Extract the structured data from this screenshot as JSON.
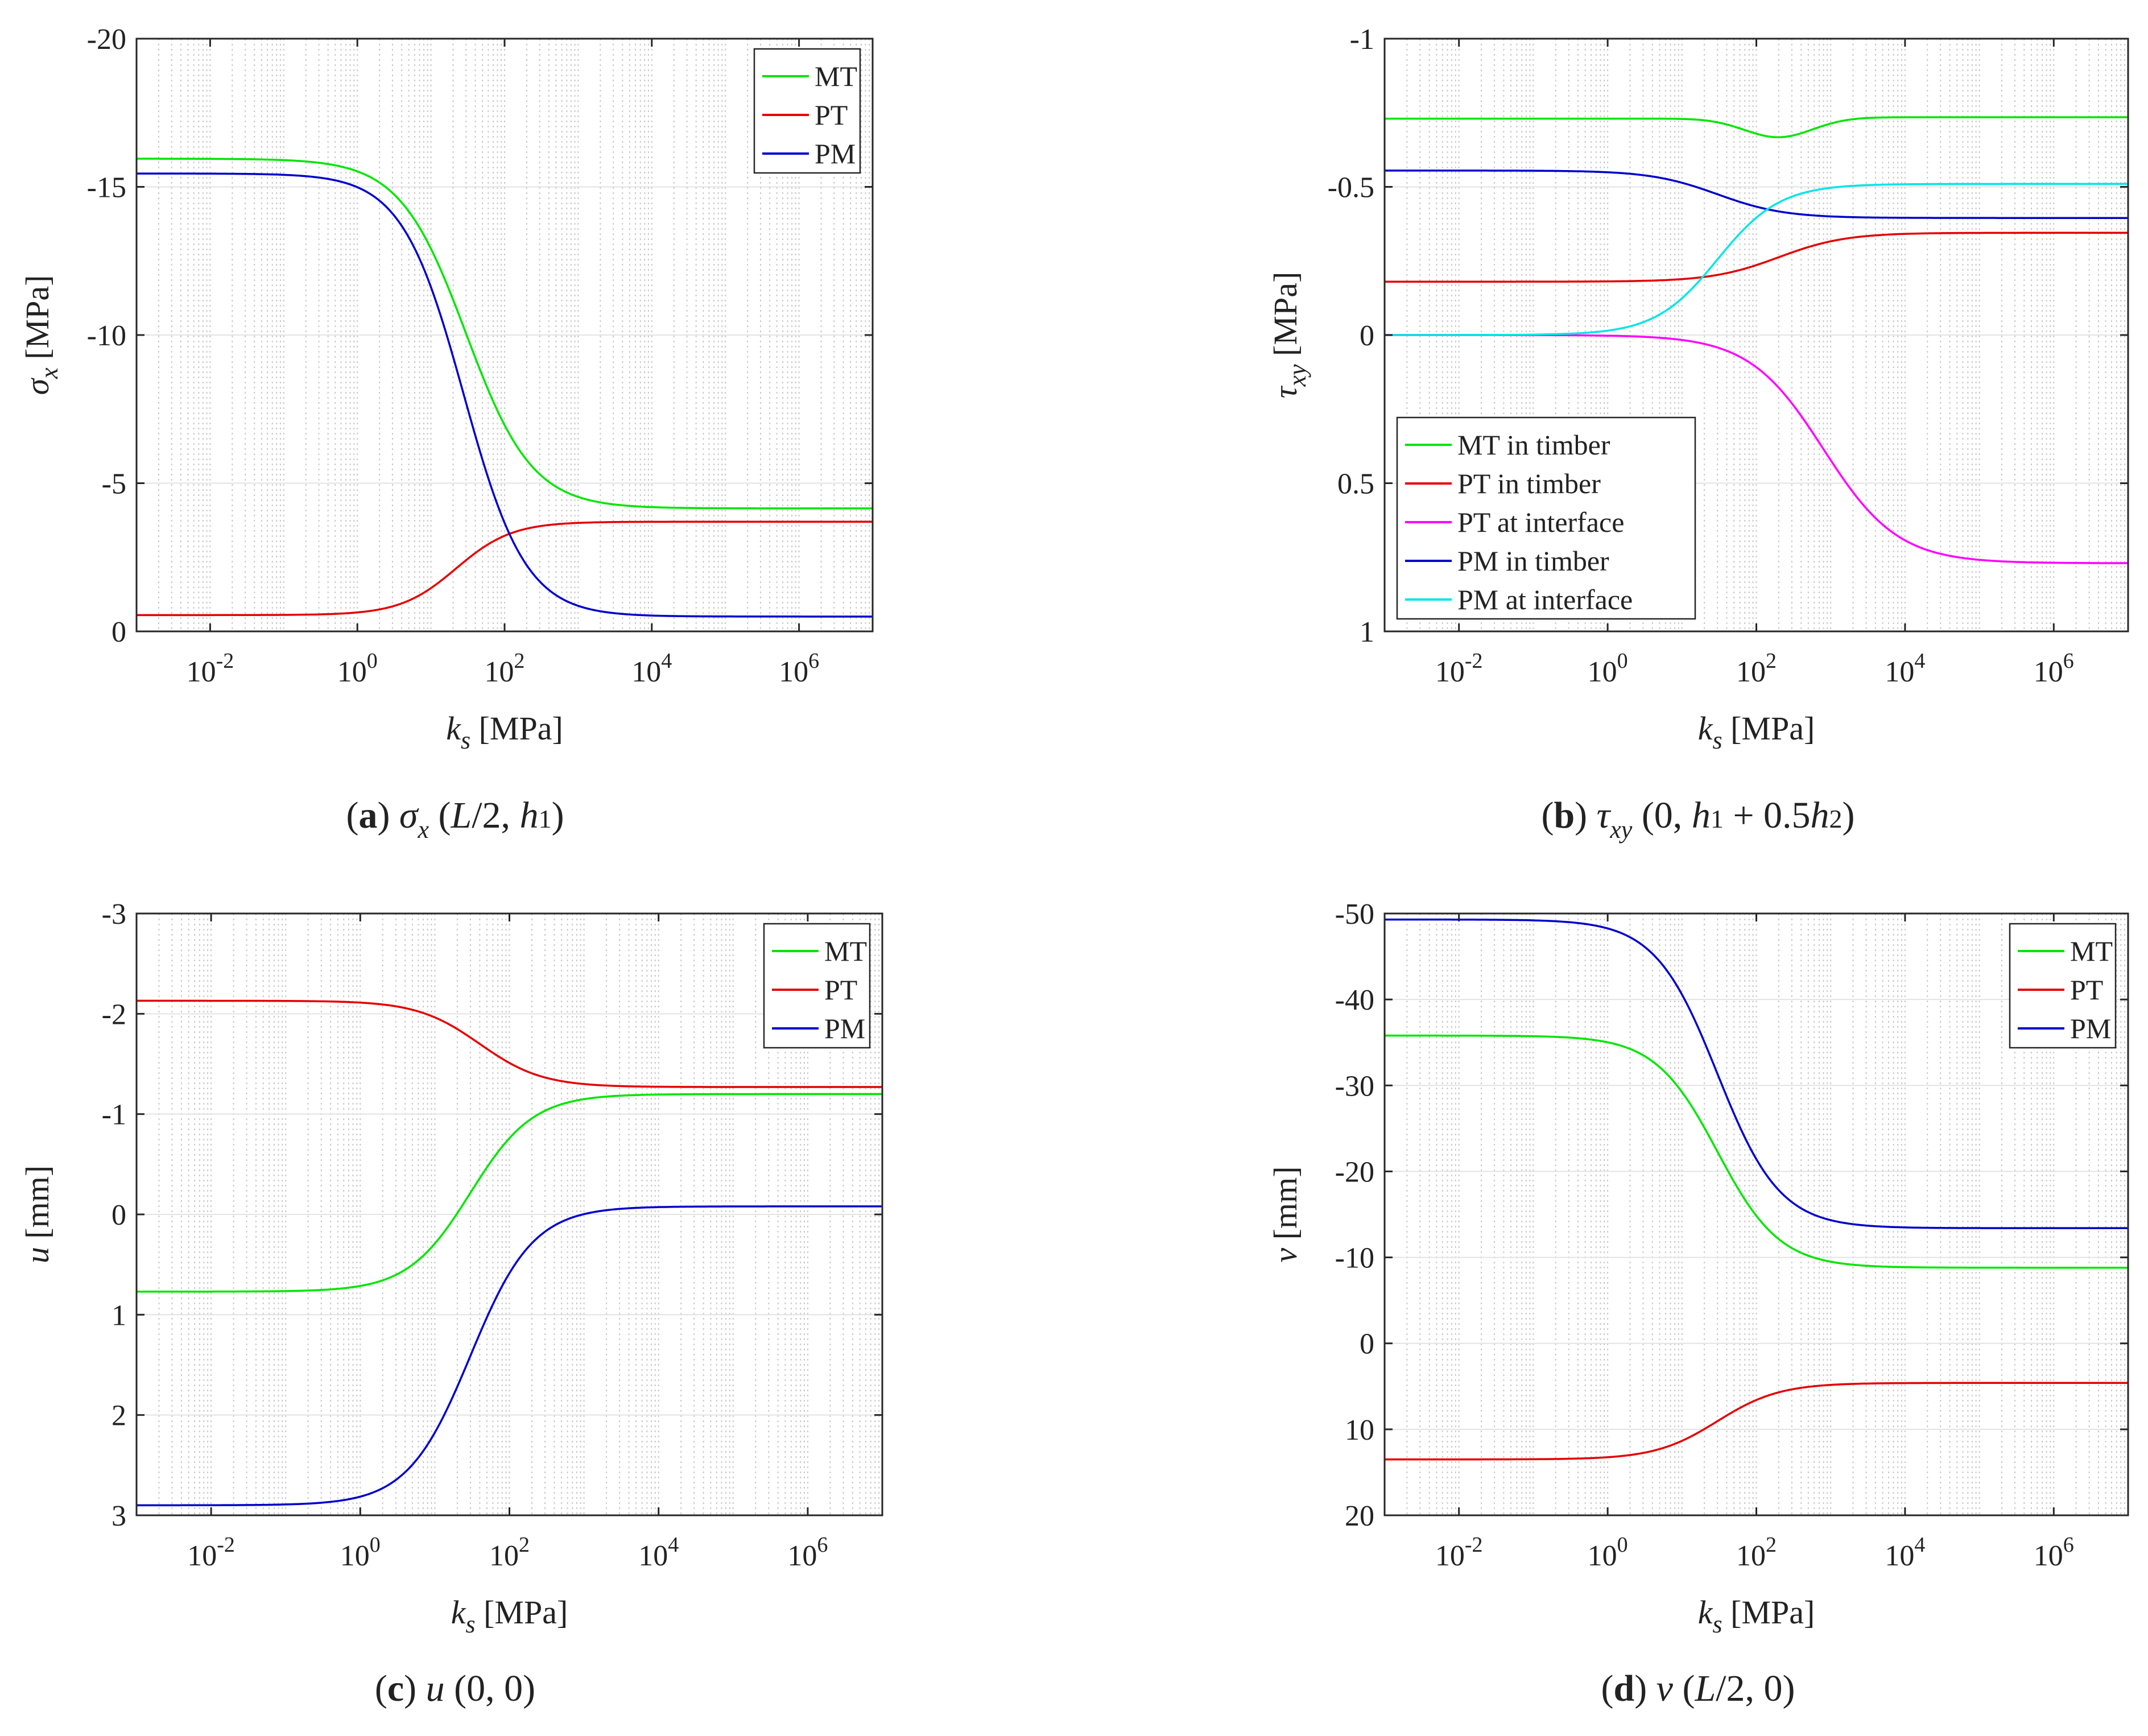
{
  "chart_data": [
    {
      "id": "a",
      "type": "line",
      "xscale": "log",
      "xlim": [
        0.001,
        10000000
      ],
      "ylim": [
        -20,
        0
      ],
      "y_reversed": true,
      "yticks": [
        -20,
        -15,
        -10,
        -5,
        0
      ],
      "ytick_labels": [
        "-20",
        "-15",
        "-10",
        "-5",
        "0"
      ],
      "xticks": [
        0.01,
        1,
        100,
        10000,
        1000000
      ],
      "xtick_labels": [
        {
          "base": "10",
          "exp": "-2"
        },
        {
          "base": "10",
          "exp": "0"
        },
        {
          "base": "10",
          "exp": "2"
        },
        {
          "base": "10",
          "exp": "4"
        },
        {
          "base": "10",
          "exp": "6"
        }
      ],
      "ylabel": {
        "sym": "σ",
        "sub": "x",
        "unit": " [MPa]"
      },
      "xlabel": {
        "sym": "k",
        "sub": "s",
        "unit": " [MPa]"
      },
      "grid": true,
      "legend": {
        "position": "top-right"
      },
      "series": [
        {
          "name": "MT",
          "color": "#00e600",
          "start": -15.95,
          "end": -4.15,
          "midpoint": 30,
          "width": 0.45
        },
        {
          "name": "PT",
          "color": "#e60000",
          "start": -0.55,
          "end": -3.7,
          "midpoint": 22,
          "width": 0.38
        },
        {
          "name": "PM",
          "color": "#0000cc",
          "start": -15.45,
          "end": -0.5,
          "midpoint": 28,
          "width": 0.42
        }
      ],
      "caption": {
        "letter": "a",
        "parts": [
          {
            "text": "σ",
            "style": "italic"
          },
          {
            "text": "x",
            "style": "sub-italic"
          },
          {
            "text": "  (",
            "style": "normal"
          },
          {
            "text": "L",
            "style": "italic"
          },
          {
            "text": "/2, ",
            "style": "normal"
          },
          {
            "text": "h",
            "style": "italic"
          },
          {
            "text": "1",
            "style": "small"
          },
          {
            "text": ")",
            "style": "normal"
          }
        ]
      }
    },
    {
      "id": "b",
      "type": "line",
      "xscale": "log",
      "xlim": [
        0.001,
        10000000
      ],
      "ylim": [
        -1,
        1
      ],
      "y_reversed": true,
      "yticks": [
        -1,
        -0.5,
        0,
        0.5,
        1
      ],
      "ytick_labels": [
        "-1",
        "-0.5",
        "0",
        "0.5",
        "1"
      ],
      "xticks": [
        0.01,
        1,
        100,
        10000,
        1000000
      ],
      "xtick_labels": [
        {
          "base": "10",
          "exp": "-2"
        },
        {
          "base": "10",
          "exp": "0"
        },
        {
          "base": "10",
          "exp": "2"
        },
        {
          "base": "10",
          "exp": "4"
        },
        {
          "base": "10",
          "exp": "6"
        }
      ],
      "ylabel": {
        "sym": "τ",
        "sub": "xy",
        "unit": " [MPa]"
      },
      "xlabel": {
        "sym": "k",
        "sub": "s",
        "unit": " [MPa]"
      },
      "grid": true,
      "legend": {
        "position": "bottom-left"
      },
      "series": [
        {
          "name": "MT in timber",
          "color": "#00e600",
          "start": -0.73,
          "end": -0.735,
          "midpoint": 200,
          "width": 0.5,
          "dip": 0.065,
          "dip_center": 200,
          "dip_width": 0.65
        },
        {
          "name": "PT in timber",
          "color": "#e60000",
          "start": -0.18,
          "end": -0.345,
          "midpoint": 200,
          "width": 0.45
        },
        {
          "name": "PT at interface",
          "color": "#ff00ff",
          "start": 0.0,
          "end": 0.77,
          "midpoint": 800,
          "width": 0.5
        },
        {
          "name": "PM in timber",
          "color": "#0000cc",
          "start": -0.555,
          "end": -0.395,
          "midpoint": 30,
          "width": 0.45
        },
        {
          "name": "PM at interface",
          "color": "#00e6e6",
          "start": 0.0,
          "end": -0.51,
          "midpoint": 30,
          "width": 0.42
        }
      ],
      "caption": {
        "letter": "b",
        "parts": [
          {
            "text": "τ",
            "style": "italic"
          },
          {
            "text": "xy",
            "style": "sub-italic"
          },
          {
            "text": "  (0, ",
            "style": "normal"
          },
          {
            "text": "h",
            "style": "italic"
          },
          {
            "text": "1",
            "style": "small"
          },
          {
            "text": " + 0.5",
            "style": "normal"
          },
          {
            "text": "h",
            "style": "italic"
          },
          {
            "text": "2",
            "style": "small"
          },
          {
            "text": ")",
            "style": "normal"
          }
        ]
      }
    },
    {
      "id": "c",
      "type": "line",
      "xscale": "log",
      "xlim": [
        0.001,
        10000000
      ],
      "ylim": [
        -3,
        3
      ],
      "y_reversed": true,
      "yticks": [
        -3,
        -2,
        -1,
        0,
        1,
        2,
        3
      ],
      "ytick_labels": [
        "-3",
        "-2",
        "-1",
        "0",
        "1",
        "2",
        "3"
      ],
      "xticks": [
        0.01,
        1,
        100,
        10000,
        1000000
      ],
      "xtick_labels": [
        {
          "base": "10",
          "exp": "-2"
        },
        {
          "base": "10",
          "exp": "0"
        },
        {
          "base": "10",
          "exp": "2"
        },
        {
          "base": "10",
          "exp": "4"
        },
        {
          "base": "10",
          "exp": "6"
        }
      ],
      "ylabel": {
        "sym": "u",
        "sub": "",
        "unit": " [mm]"
      },
      "xlabel": {
        "sym": "k",
        "sub": "s",
        "unit": " [MPa]"
      },
      "grid": true,
      "legend": {
        "position": "top-right"
      },
      "series": [
        {
          "name": "MT",
          "color": "#00e600",
          "start": 0.77,
          "end": -1.2,
          "midpoint": 30,
          "width": 0.42
        },
        {
          "name": "PT",
          "color": "#e60000",
          "start": -2.13,
          "end": -1.27,
          "midpoint": 40,
          "width": 0.42
        },
        {
          "name": "PM",
          "color": "#0000cc",
          "start": 2.9,
          "end": -0.08,
          "midpoint": 30,
          "width": 0.42
        }
      ],
      "caption": {
        "letter": "c",
        "parts": [
          {
            "text": " ",
            "style": "normal"
          },
          {
            "text": "u",
            "style": "italic"
          },
          {
            "text": " (0, 0)",
            "style": "normal"
          }
        ]
      }
    },
    {
      "id": "d",
      "type": "line",
      "xscale": "log",
      "xlim": [
        0.001,
        10000000
      ],
      "ylim": [
        -50,
        20
      ],
      "y_reversed": true,
      "yticks": [
        -50,
        -40,
        -30,
        -20,
        -10,
        0,
        10,
        20
      ],
      "ytick_labels": [
        "-50",
        "-40",
        "-30",
        "-20",
        "-10",
        "0",
        "10",
        "20"
      ],
      "xticks": [
        0.01,
        1,
        100,
        10000,
        1000000
      ],
      "xtick_labels": [
        {
          "base": "10",
          "exp": "-2"
        },
        {
          "base": "10",
          "exp": "0"
        },
        {
          "base": "10",
          "exp": "2"
        },
        {
          "base": "10",
          "exp": "4"
        },
        {
          "base": "10",
          "exp": "6"
        }
      ],
      "ylabel": {
        "sym": "v",
        "sub": "",
        "unit": " [mm]"
      },
      "xlabel": {
        "sym": "k",
        "sub": "s",
        "unit": " [MPa]"
      },
      "grid": true,
      "legend": {
        "position": "top-right"
      },
      "series": [
        {
          "name": "MT",
          "color": "#00e600",
          "start": -35.8,
          "end": -8.8,
          "midpoint": 30,
          "width": 0.42
        },
        {
          "name": "PT",
          "color": "#e60000",
          "start": 13.5,
          "end": 4.6,
          "midpoint": 30,
          "width": 0.42
        },
        {
          "name": "PM",
          "color": "#0000cc",
          "start": -49.3,
          "end": -13.4,
          "midpoint": 30,
          "width": 0.42
        }
      ],
      "caption": {
        "letter": "d",
        "parts": [
          {
            "text": "v",
            "style": "italic"
          },
          {
            "text": "  (",
            "style": "normal"
          },
          {
            "text": "L",
            "style": "italic"
          },
          {
            "text": "/2, 0)",
            "style": "normal"
          }
        ]
      }
    }
  ]
}
